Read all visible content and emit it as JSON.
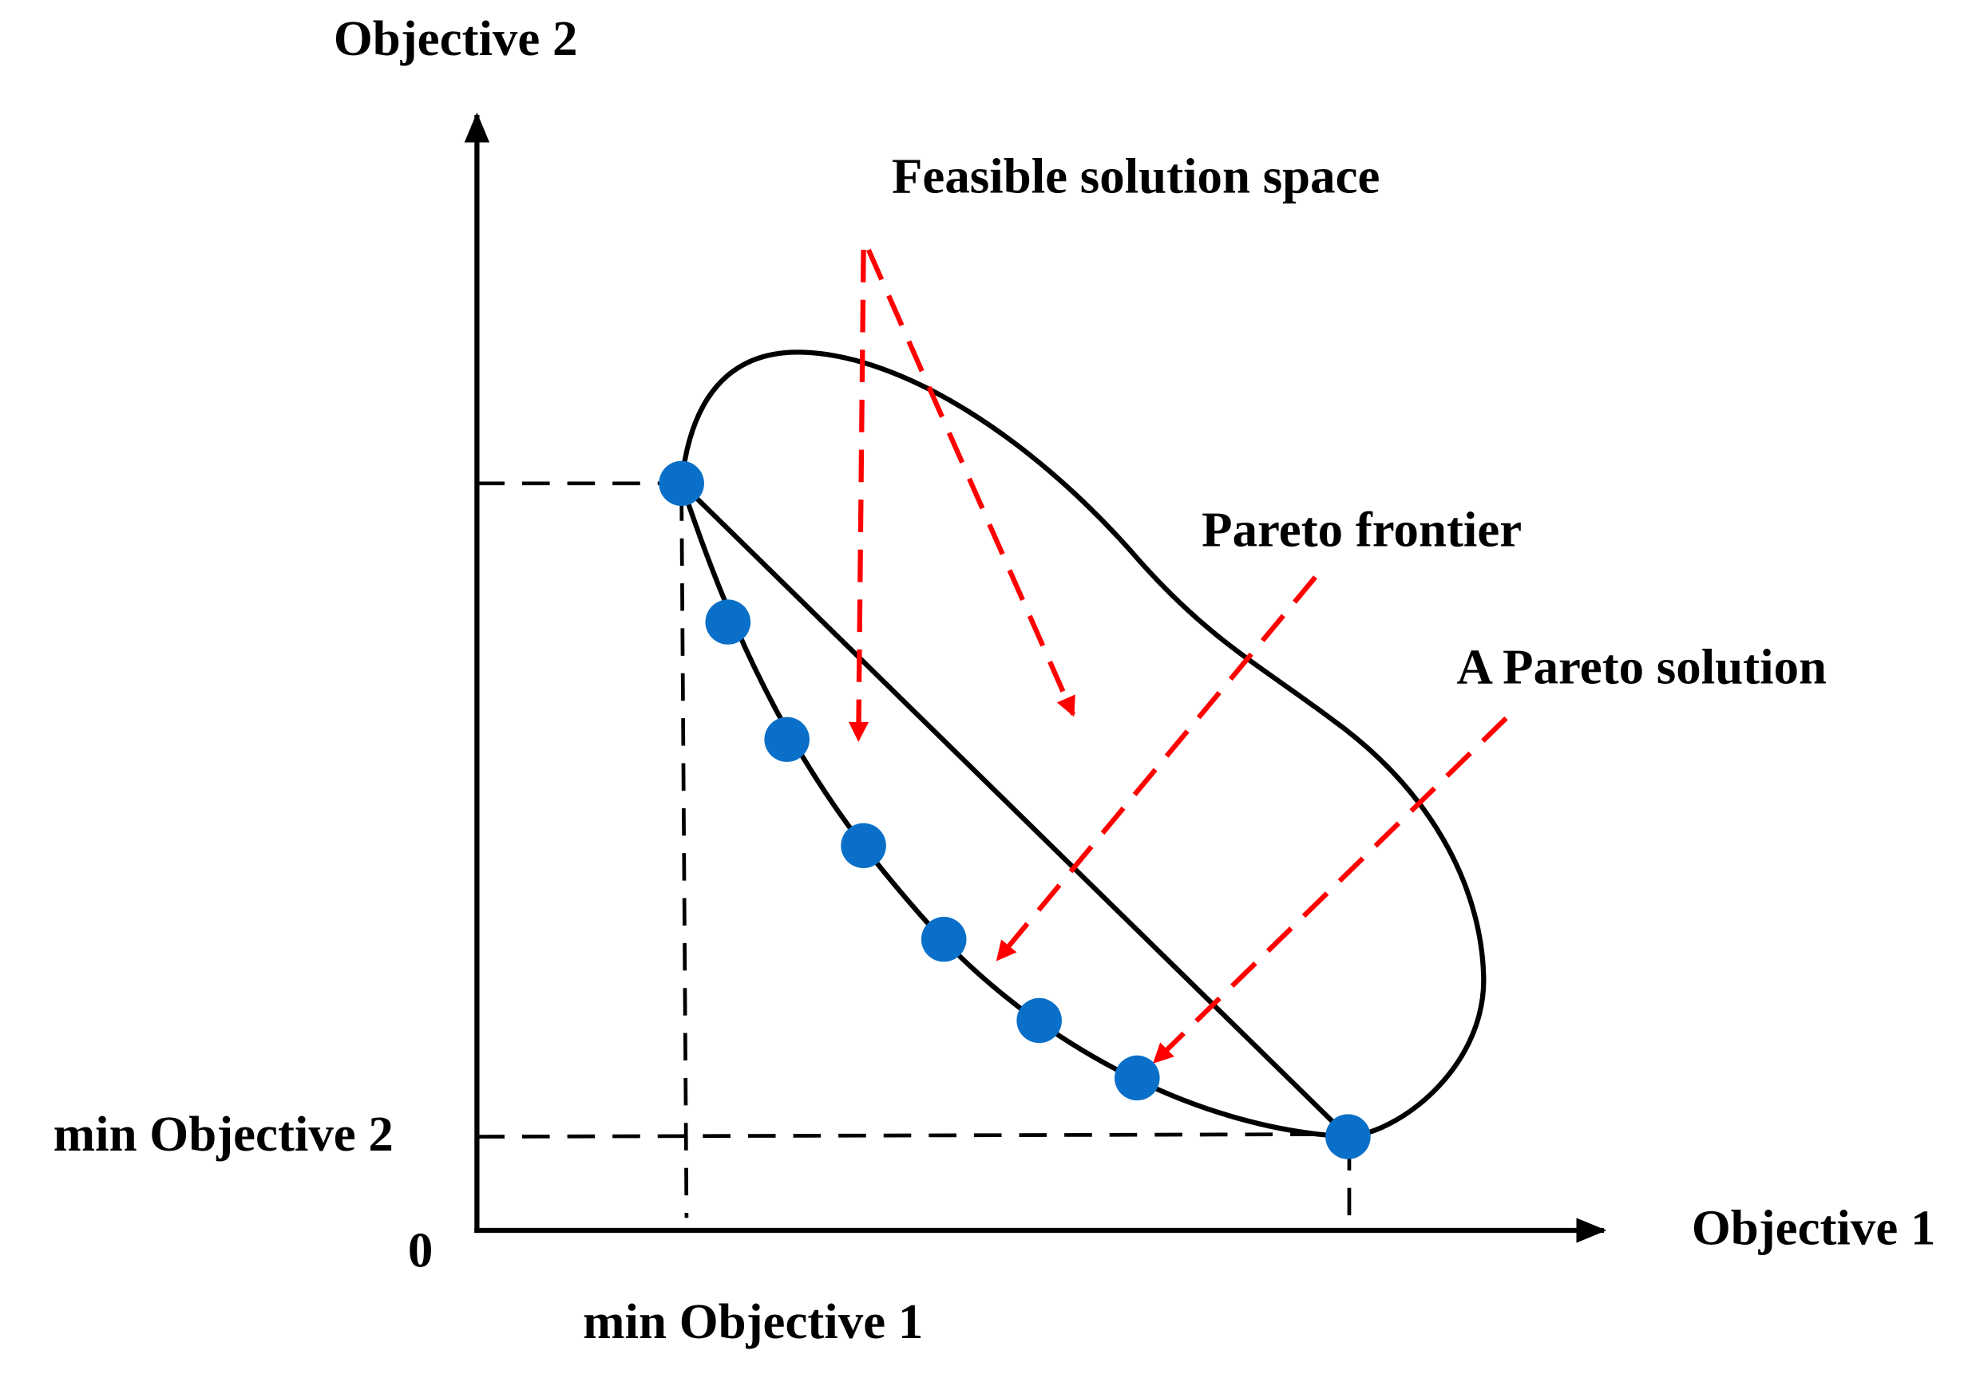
{
  "axes": {
    "y_label": "Objective 2",
    "x_label": "Objective 1",
    "origin": "0",
    "min_y_label": "min Objective 2",
    "min_x_label": "min Objective 1"
  },
  "annotations": [
    "Feasible solution space",
    "Pareto frontier",
    "A Pareto solution"
  ]
}
